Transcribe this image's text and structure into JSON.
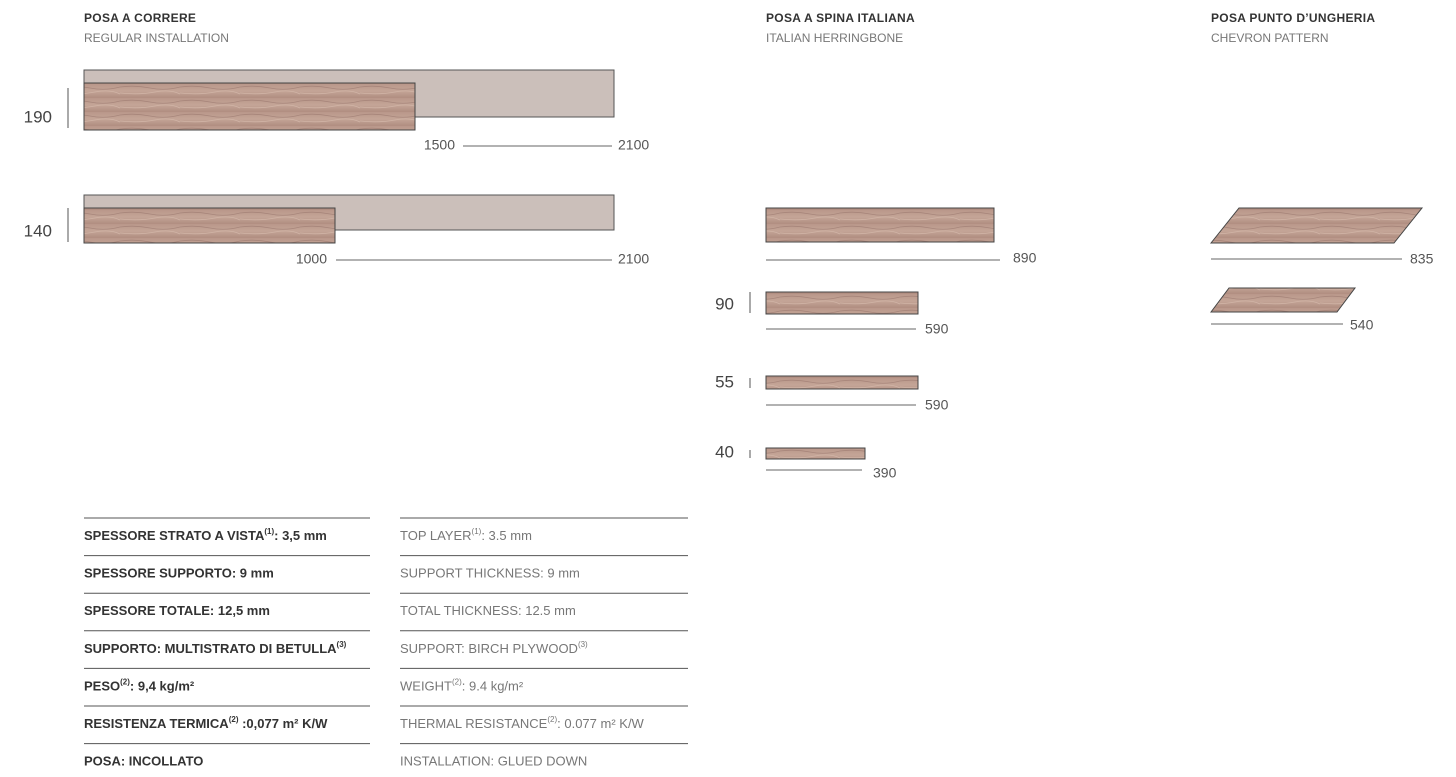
{
  "sections": [
    {
      "title": "POSA A CORRERE",
      "subtitle": "REGULAR INSTALLATION"
    },
    {
      "title": "POSA A SPINA ITALIANA",
      "subtitle": "ITALIAN HERRINGBONE"
    },
    {
      "title": "POSA PUNTO D’UNGHERIA",
      "subtitle": "CHEVRON PATTERN"
    }
  ],
  "regular": [
    {
      "width": 190,
      "min_length": 1500,
      "max_length": 2100
    },
    {
      "width": 140,
      "min_length": 1000,
      "max_length": 2100
    }
  ],
  "herringbone": {
    "top_length": 890,
    "rows": [
      {
        "width": 90,
        "length": 590
      },
      {
        "width": 55,
        "length": 590
      },
      {
        "width": 40,
        "length": 390
      }
    ]
  },
  "chevron": [
    {
      "length": 835
    },
    {
      "length": 540
    }
  ],
  "specs": [
    {
      "it": {
        "text": "SPESSORE STRATO A VISTA",
        "sup": "(1)",
        "rest": ": 3,5 mm"
      },
      "en": {
        "text": "TOP LAYER",
        "sup": "(1)",
        "rest": ": 3.5 mm"
      }
    },
    {
      "it": {
        "text": "SPESSORE SUPPORTO: 9 mm"
      },
      "en": {
        "text": "SUPPORT THICKNESS: 9 mm"
      }
    },
    {
      "it": {
        "text": "SPESSORE TOTALE: 12,5 mm"
      },
      "en": {
        "text": "TOTAL THICKNESS: 12.5 mm"
      }
    },
    {
      "it": {
        "text": "SUPPORTO: MULTISTRATO DI BETULLA",
        "sup": "(3)"
      },
      "en": {
        "text": "SUPPORT: BIRCH PLYWOOD",
        "sup": "(3)"
      }
    },
    {
      "it": {
        "text": "PESO",
        "sup": "(2)",
        "rest": ": 9,4 kg/m²"
      },
      "en": {
        "text": "WEIGHT",
        "sup": "(2)",
        "rest": ": 9.4 kg/m²"
      }
    },
    {
      "it": {
        "text": "RESISTENZA TERMICA",
        "sup": "(2)",
        "rest": " :0,077 m² K/W"
      },
      "en": {
        "text": "THERMAL RESISTANCE",
        "sup": "(2)",
        "rest": ": 0.077 m² K/W"
      }
    },
    {
      "it": {
        "text": "POSA: INCOLLATO"
      },
      "en": {
        "text": "INSTALLATION: GLUED DOWN"
      }
    }
  ]
}
